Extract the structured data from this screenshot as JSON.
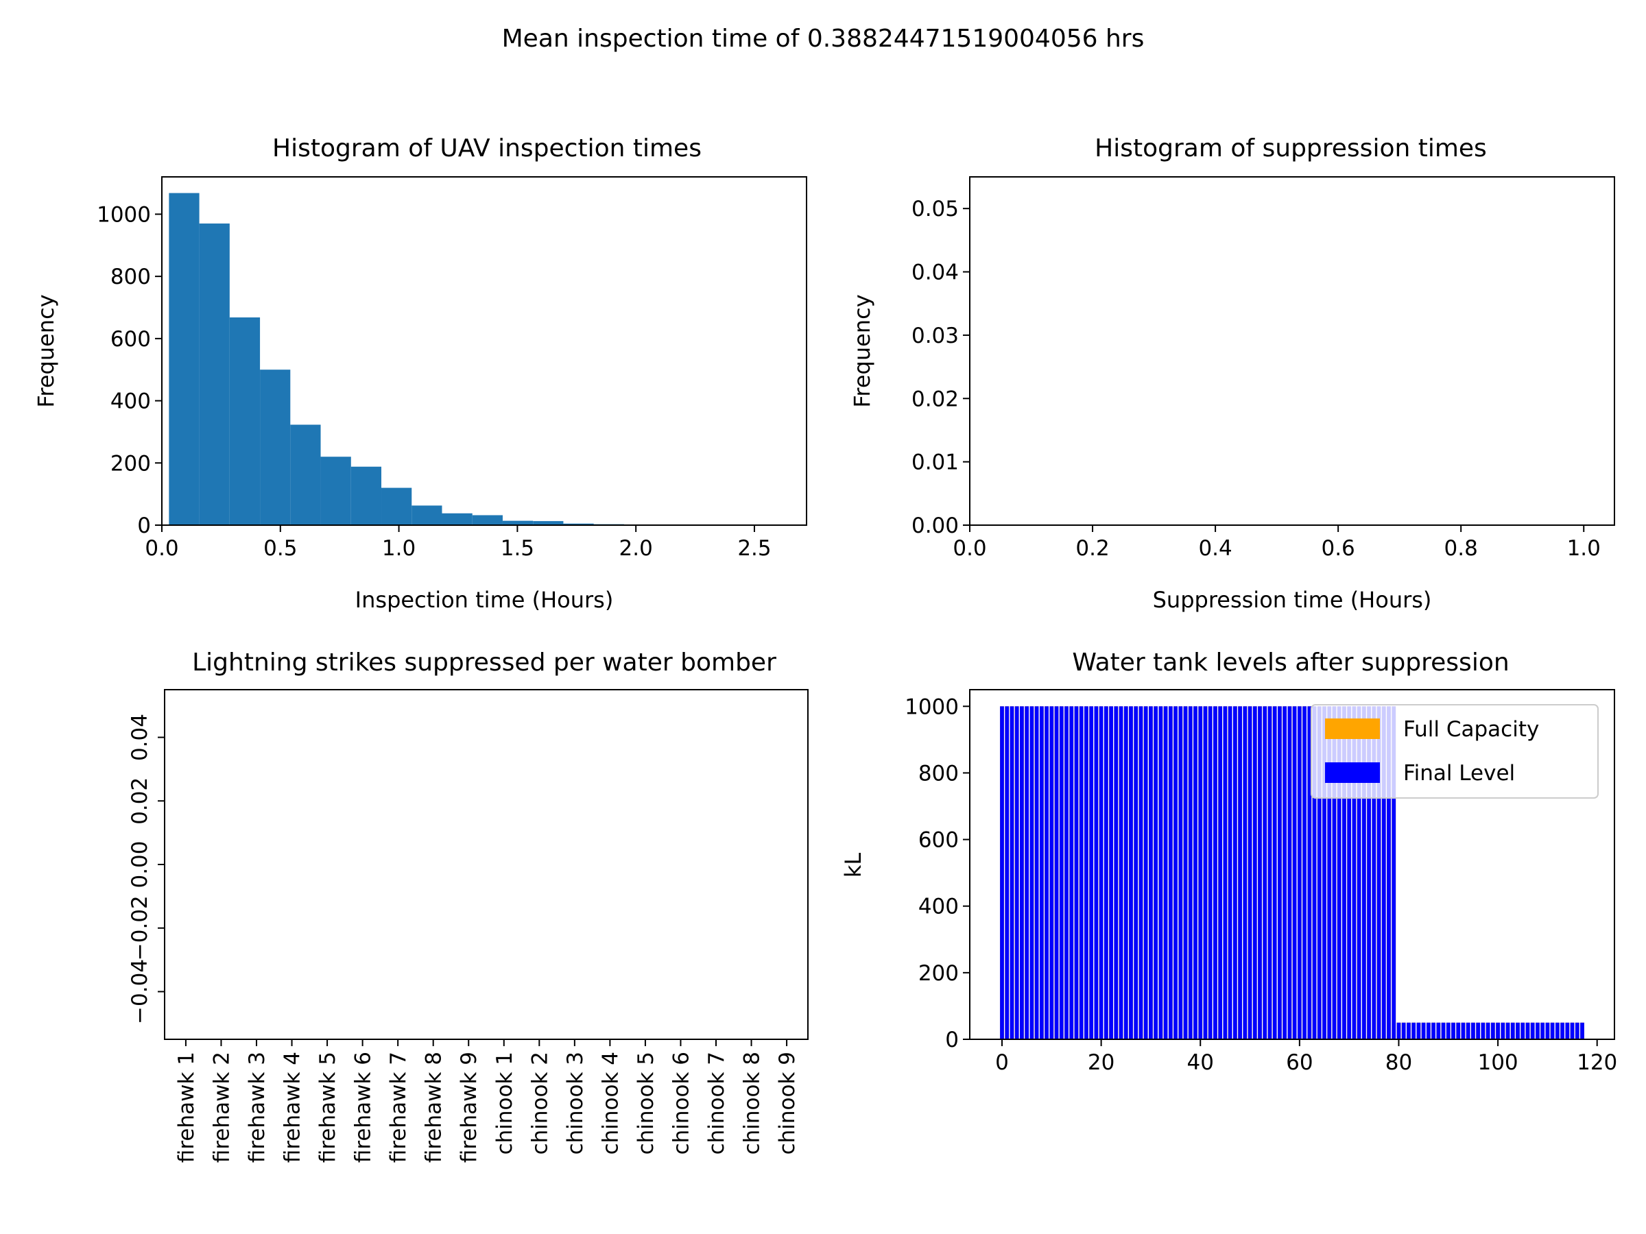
{
  "suptitle": "Mean inspection time of 0.38824471519004056 hrs",
  "chart_data": [
    {
      "type": "bar",
      "title": "Histogram of UAV inspection times",
      "xlabel": "Inspection time (Hours)",
      "ylabel": "Frequency",
      "xlim": [
        0,
        2.72
      ],
      "ylim": [
        0,
        1120
      ],
      "xticks": [
        "0.0",
        "0.5",
        "1.0",
        "1.5",
        "2.0",
        "2.5"
      ],
      "xtick_values": [
        0,
        0.5,
        1.0,
        1.5,
        2.0,
        2.5
      ],
      "yticks": [
        "0",
        "200",
        "400",
        "600",
        "800",
        "1000"
      ],
      "ytick_values": [
        0,
        200,
        400,
        600,
        800,
        1000
      ],
      "bin_edges": [
        0.03,
        0.158,
        0.286,
        0.414,
        0.542,
        0.67,
        0.798,
        0.926,
        1.054,
        1.182,
        1.31,
        1.438,
        1.566,
        1.694,
        1.822,
        1.95,
        2.078,
        2.206,
        2.334,
        2.462,
        2.59
      ],
      "values": [
        1068,
        970,
        668,
        500,
        323,
        220,
        188,
        120,
        63,
        38,
        32,
        14,
        13,
        5,
        3,
        2,
        1,
        0,
        0,
        1
      ],
      "color": "#1f77b4",
      "grid": false
    },
    {
      "type": "bar",
      "title": "Histogram of suppression times",
      "xlabel": "Suppression time (Hours)",
      "ylabel": "Frequency",
      "xlim": [
        0,
        1.05
      ],
      "ylim": [
        0,
        0.055
      ],
      "xticks": [
        "0.0",
        "0.2",
        "0.4",
        "0.6",
        "0.8",
        "1.0"
      ],
      "xtick_values": [
        0,
        0.2,
        0.4,
        0.6,
        0.8,
        1.0
      ],
      "yticks": [
        "0.00",
        "0.01",
        "0.02",
        "0.03",
        "0.04",
        "0.05"
      ],
      "ytick_values": [
        0,
        0.01,
        0.02,
        0.03,
        0.04,
        0.05
      ],
      "values": [],
      "grid": false
    },
    {
      "type": "bar",
      "title": "Lightning strikes suppressed per water bomber",
      "xlabel": "",
      "ylabel": "",
      "categories": [
        "firehawk 1",
        "firehawk 2",
        "firehawk 3",
        "firehawk 4",
        "firehawk 5",
        "firehawk 6",
        "firehawk 7",
        "firehawk 8",
        "firehawk 9",
        "chinook 1",
        "chinook 2",
        "chinook 3",
        "chinook 4",
        "chinook 5",
        "chinook 6",
        "chinook 7",
        "chinook 8",
        "chinook 9"
      ],
      "values": [
        0,
        0,
        0,
        0,
        0,
        0,
        0,
        0,
        0,
        0,
        0,
        0,
        0,
        0,
        0,
        0,
        0,
        0
      ],
      "ylim": [
        -0.055,
        0.055
      ],
      "yticks": [
        "−0.04",
        "−0.02",
        "0.00",
        "0.02",
        "0.04"
      ],
      "ytick_values": [
        -0.04,
        -0.02,
        0,
        0.02,
        0.04
      ],
      "grid": false
    },
    {
      "type": "bar",
      "title": "Water tank levels after suppression",
      "xlabel": "",
      "ylabel": "kL",
      "xlim": [
        -6.5,
        123.5
      ],
      "ylim": [
        0,
        1050
      ],
      "xticks": [
        "0",
        "20",
        "40",
        "60",
        "80",
        "100",
        "120"
      ],
      "xtick_values": [
        0,
        20,
        40,
        60,
        80,
        100,
        120
      ],
      "yticks": [
        "0",
        "200",
        "400",
        "600",
        "800",
        "1000"
      ],
      "ytick_values": [
        0,
        200,
        400,
        600,
        800,
        1000
      ],
      "legend": {
        "placement": "top-right",
        "entries": [
          "Full Capacity",
          "Final Level"
        ]
      },
      "series": [
        {
          "name": "Full Capacity",
          "color": "#ffa500",
          "groups": [
            {
              "from": 0,
              "to": 79,
              "value": 1000
            },
            {
              "from": 80,
              "to": 117,
              "value": 50
            }
          ]
        },
        {
          "name": "Final Level",
          "color": "#0000ff",
          "groups": [
            {
              "from": 0,
              "to": 79,
              "value": 1000
            },
            {
              "from": 80,
              "to": 117,
              "value": 50
            }
          ]
        }
      ],
      "grid": false
    }
  ]
}
